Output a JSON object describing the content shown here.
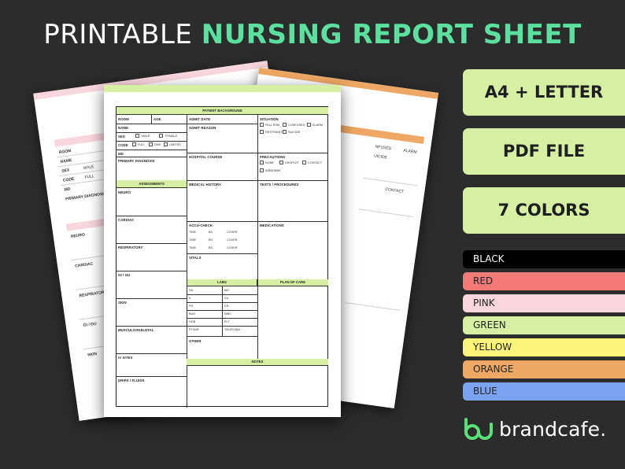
{
  "headline": {
    "plain": "PRINTABLE ",
    "accent": "NURSING REPORT SHEET"
  },
  "features": [
    "A4 + LETTER",
    "PDF FILE",
    "7 COLORS"
  ],
  "colors": [
    {
      "name": "BLACK",
      "bg": "#000000",
      "fg": "#ffffff"
    },
    {
      "name": "RED",
      "bg": "#f47a78",
      "fg": "#222222"
    },
    {
      "name": "PINK",
      "bg": "#f8d6dd",
      "fg": "#222222"
    },
    {
      "name": "GREEN",
      "bg": "#d6efa3",
      "fg": "#222222"
    },
    {
      "name": "YELLOW",
      "bg": "#fbf57c",
      "fg": "#222222"
    },
    {
      "name": "ORANGE",
      "bg": "#eea865",
      "fg": "#222222"
    },
    {
      "name": "BLUE",
      "bg": "#7aa4f0",
      "fg": "#222222"
    }
  ],
  "brand": {
    "name": "brandcafe.",
    "accent": "#5ce07a"
  },
  "sheet_colors": {
    "front": "#d6efa3",
    "left": "#f8d6dd",
    "right": "#eea865"
  },
  "form": {
    "patient_background": "PATIENT BACKGROUND",
    "room": "ROOM",
    "age": "AGE",
    "name": "NAME",
    "sex": "SEX",
    "male": "MALE",
    "female": "FEMALE",
    "code": "CODE",
    "full": "FULL",
    "dnr": "DNR",
    "limited": "LIMITED",
    "md": "MD",
    "primary_diagnosis": "PRIMARY DIAGNOSIS",
    "admit_date": "ADMIT DATE",
    "admit_reason": "ADMIT REASON",
    "hospital_course": "HOSPITAL COURSE",
    "situation": "SITUATION",
    "fall_risk": "FALL RISK",
    "confused": "CONFUSED",
    "alarm": "ALARM",
    "restraints": "RESTRAINTS",
    "suicide": "SUICIDE",
    "precautions": "PRECAUTIONS",
    "none": "NONE",
    "droplet": "DROPLET",
    "contact": "CONTACT",
    "airborne": "AIRBORNE",
    "assessments": "ASSESSMENTS",
    "medical_history": "MEDICAL HISTORY",
    "tests_procedures": "TESTS / PROCEDURES",
    "neuro": "NEURO",
    "cardiac": "CARDIAC",
    "respiratory": "RESPIRATORY",
    "gi_gu": "GI / GU",
    "skin": "SKIN",
    "musculoskeletal": "MUSCULOSKELETAL",
    "iv_sites": "IV SITES",
    "drips_fluids": "DRIPS / FLUIDS",
    "accu_check": "ACCU-CHECK",
    "time": "TIME",
    "bg": "BG",
    "cover": "COVER",
    "vitals": "VITALS",
    "medications": "MEDICATIONS",
    "labs": "LABS",
    "plan_of_care": "PLAN OF CARE",
    "labs_left": [
      "NA",
      "K",
      "PH",
      "BUN",
      "HGB",
      "PT/INR"
    ],
    "labs_right": [
      "MG",
      "CA",
      "CR",
      "WBC",
      "PLT",
      "TROPONIN"
    ],
    "other": "OTHER",
    "notes": "NOTES"
  },
  "ghost_left": {
    "room": "ROOM",
    "name": "NAME",
    "sex": "SEX",
    "male": "MALE",
    "code": "CODE",
    "full": "FULL",
    "md": "MD",
    "primary_diagnosis": "PRIMARY DIAGNOSIS",
    "as": "AS",
    "neuro": "NEURO",
    "cardiac": "CARDIAC",
    "respirator": "RESPIRATOR",
    "gi_gu": "GI / GU",
    "skin": "SKIN"
  },
  "ghost_right": {
    "fused": "NFUSED",
    "alarm": "ALARM",
    "suicide": "UICIDE",
    "contact": "CONTACT"
  }
}
